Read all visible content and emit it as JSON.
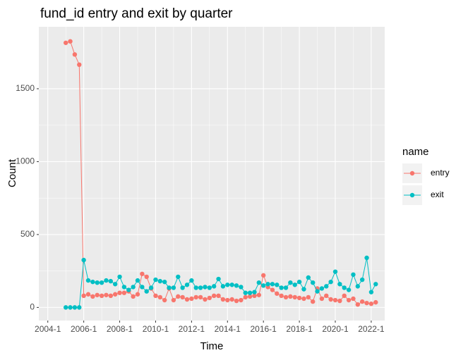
{
  "chart_data": {
    "type": "line",
    "title": "fund_id entry and exit by quarter",
    "x_label": "Time",
    "y_label": "Count",
    "legend_title": "name",
    "legend": "right",
    "grid": true,
    "x": [
      "2005-1",
      "2005-2",
      "2005-3",
      "2005-4",
      "2006-1",
      "2006-2",
      "2006-3",
      "2006-4",
      "2007-1",
      "2007-2",
      "2007-3",
      "2007-4",
      "2008-1",
      "2008-2",
      "2008-3",
      "2008-4",
      "2009-1",
      "2009-2",
      "2009-3",
      "2009-4",
      "2010-1",
      "2010-2",
      "2010-3",
      "2010-4",
      "2011-1",
      "2011-2",
      "2011-3",
      "2011-4",
      "2012-1",
      "2012-2",
      "2012-3",
      "2012-4",
      "2013-1",
      "2013-2",
      "2013-3",
      "2013-4",
      "2014-1",
      "2014-2",
      "2014-3",
      "2014-4",
      "2015-1",
      "2015-2",
      "2015-3",
      "2015-4",
      "2016-1",
      "2016-2",
      "2016-3",
      "2016-4",
      "2017-1",
      "2017-2",
      "2017-3",
      "2017-4",
      "2018-1",
      "2018-2",
      "2018-3",
      "2018-4",
      "2019-1",
      "2019-2",
      "2019-3",
      "2019-4",
      "2020-1",
      "2020-2",
      "2020-3",
      "2020-4",
      "2021-1",
      "2021-2",
      "2021-3",
      "2021-4",
      "2022-1",
      "2022-2"
    ],
    "series": [
      {
        "name": "entry",
        "color": "#F8766D",
        "values": [
          1815,
          1825,
          1735,
          1665,
          80,
          90,
          75,
          85,
          80,
          85,
          80,
          90,
          100,
          100,
          110,
          75,
          90,
          230,
          210,
          130,
          80,
          70,
          50,
          130,
          50,
          75,
          70,
          55,
          60,
          70,
          70,
          55,
          65,
          80,
          80,
          55,
          50,
          55,
          45,
          50,
          70,
          75,
          80,
          85,
          220,
          140,
          120,
          95,
          80,
          70,
          75,
          70,
          65,
          60,
          70,
          40,
          130,
          60,
          80,
          55,
          50,
          45,
          80,
          50,
          60,
          20,
          40,
          30,
          25,
          35
        ]
      },
      {
        "name": "exit",
        "color": "#00BFC4",
        "values": [
          0,
          0,
          0,
          0,
          325,
          185,
          175,
          170,
          170,
          185,
          180,
          160,
          210,
          140,
          120,
          140,
          185,
          140,
          110,
          135,
          190,
          180,
          175,
          135,
          135,
          210,
          135,
          155,
          185,
          135,
          135,
          140,
          135,
          145,
          195,
          145,
          155,
          155,
          150,
          140,
          100,
          100,
          105,
          170,
          150,
          160,
          160,
          155,
          135,
          135,
          170,
          155,
          175,
          125,
          205,
          170,
          110,
          130,
          145,
          175,
          245,
          160,
          135,
          120,
          225,
          145,
          190,
          340,
          105,
          160
        ]
      }
    ],
    "xlim": [
      "2003-3",
      "2022-4"
    ],
    "xticks": [
      "2004-1",
      "2006-1",
      "2008-1",
      "2010-1",
      "2012-1",
      "2014-1",
      "2016-1",
      "2018-1",
      "2020-1",
      "2022-1"
    ],
    "ylim": [
      -90,
      1925
    ],
    "yticks": [
      0,
      500,
      1000,
      1500
    ]
  }
}
